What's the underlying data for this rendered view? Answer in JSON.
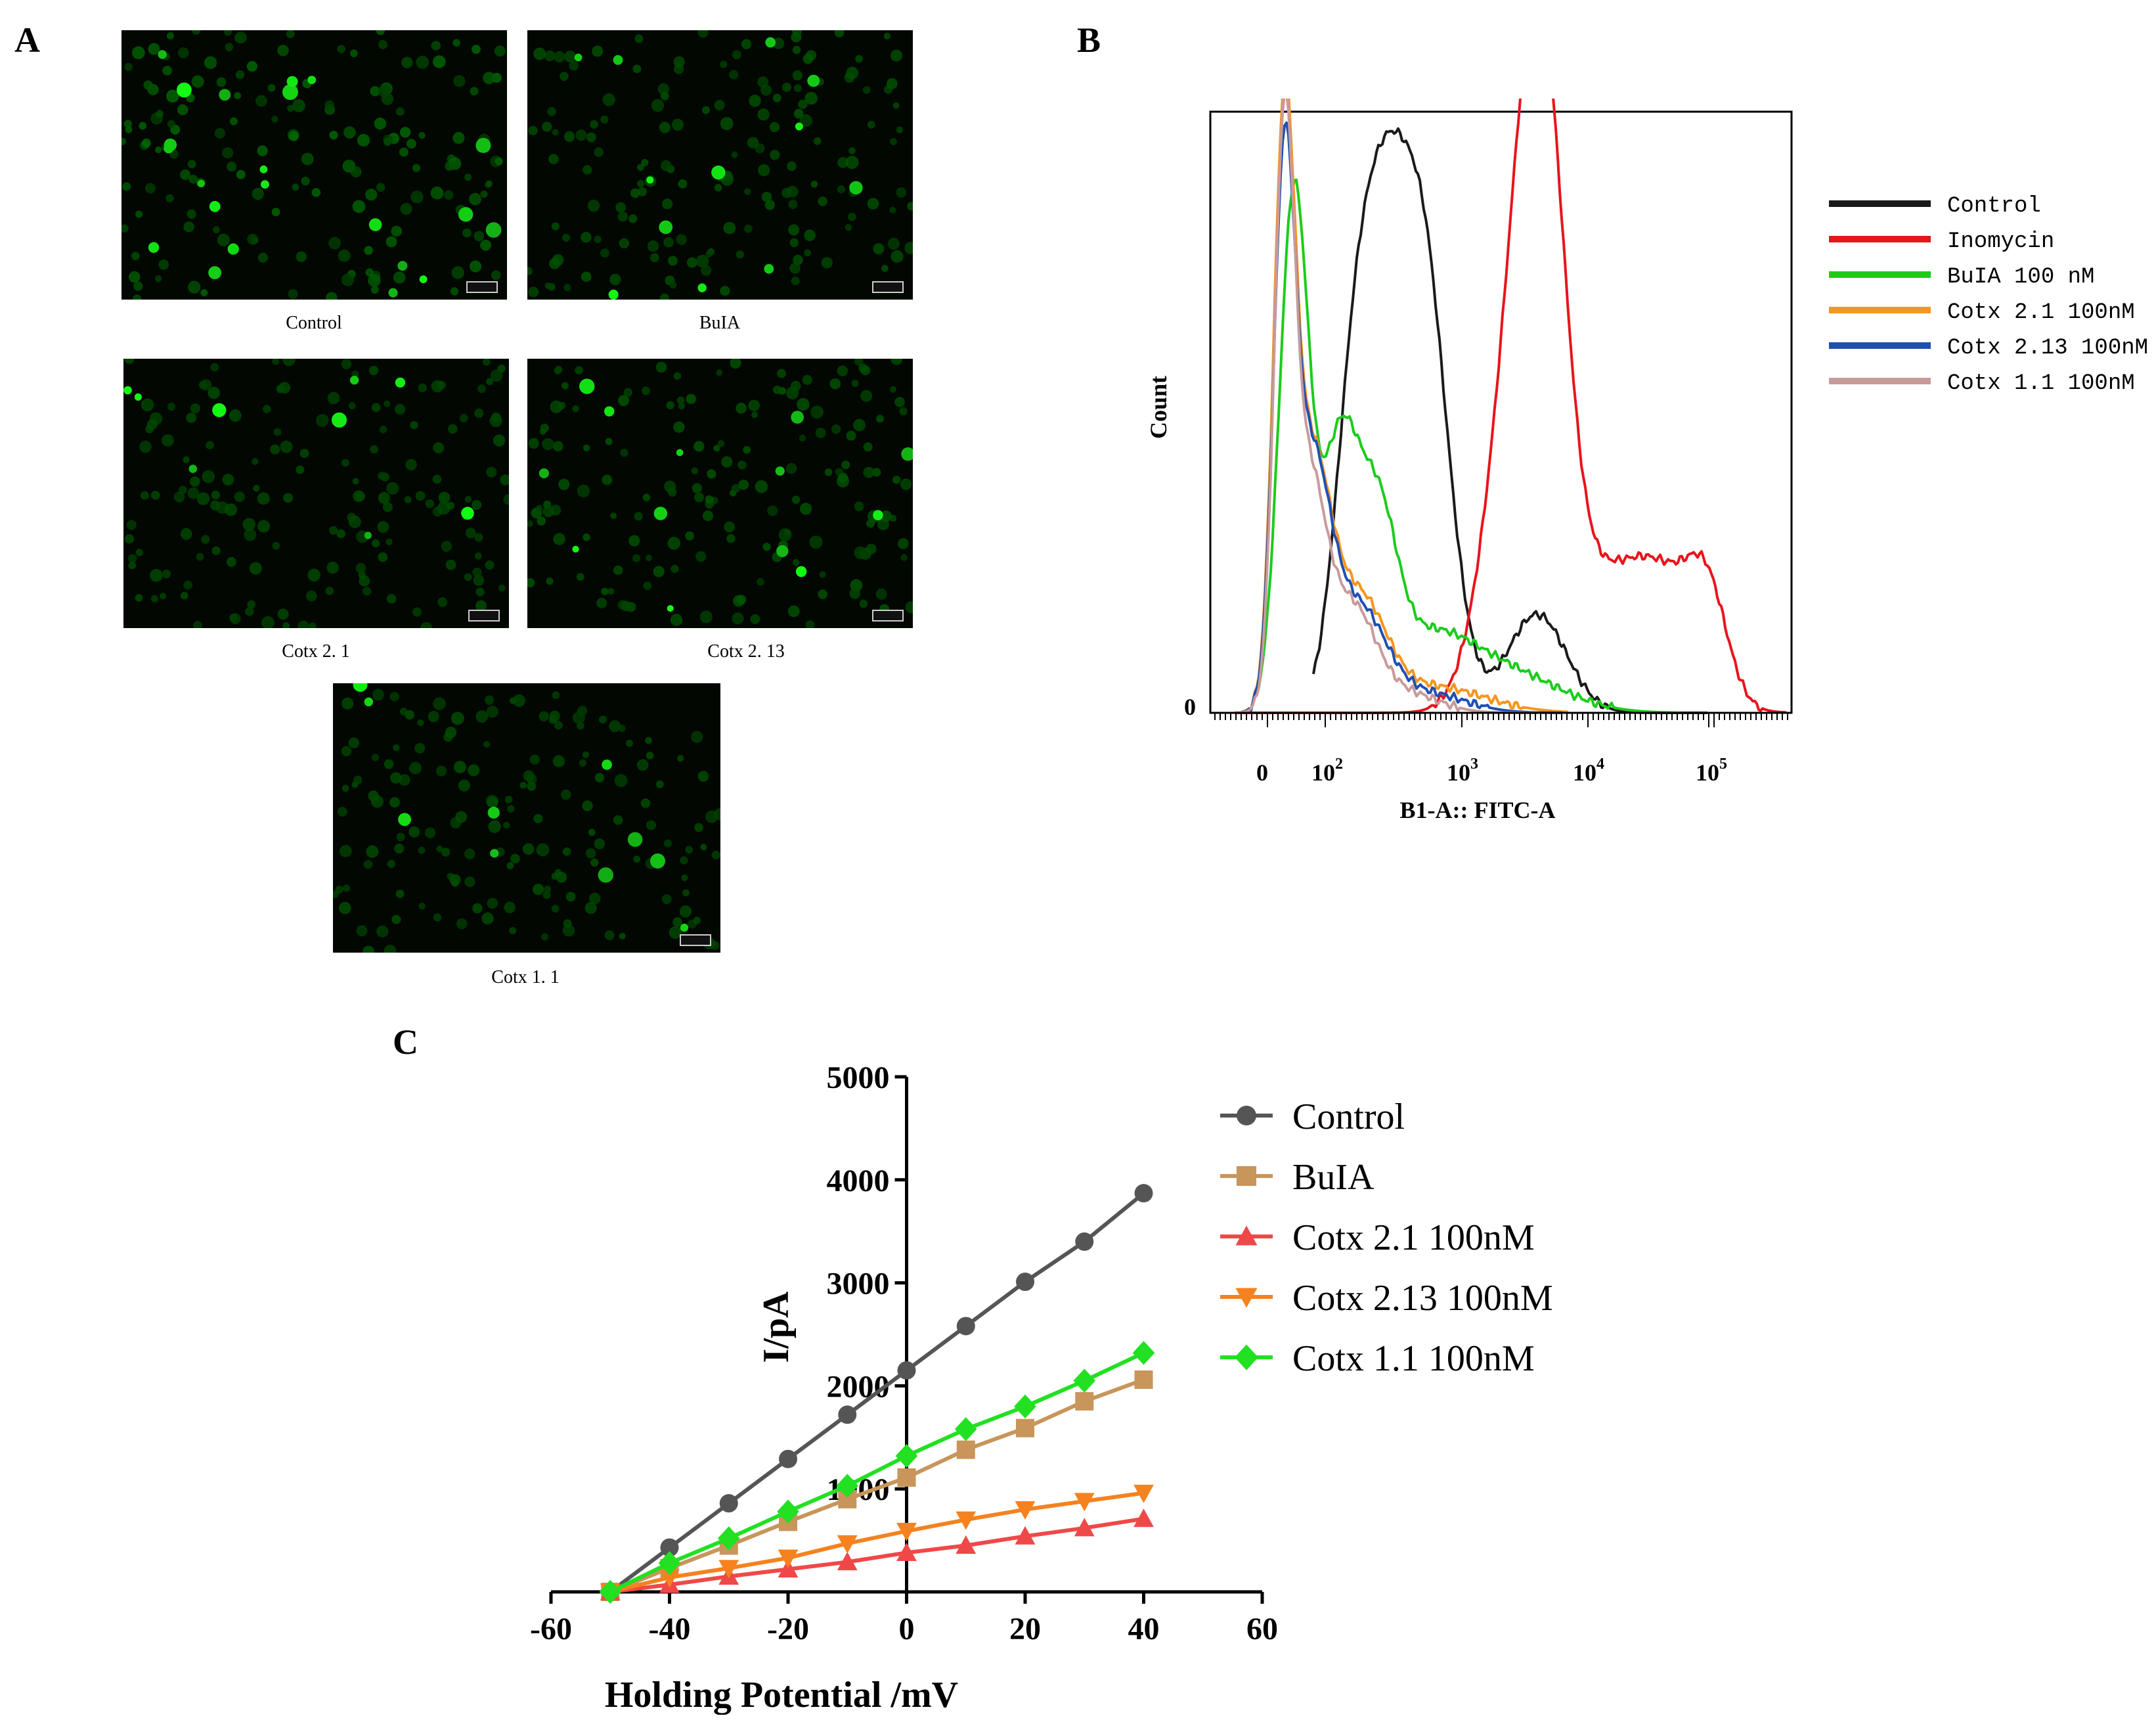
{
  "panels": {
    "a": "A",
    "b": "B",
    "c": "C"
  },
  "microscopy": [
    {
      "label": "Control",
      "brightness": 1.0
    },
    {
      "label": "BuIA",
      "brightness": 0.55
    },
    {
      "label": "Cotx 2. 1",
      "brightness": 0.4
    },
    {
      "label": "Cotx 2. 13",
      "brightness": 0.6
    },
    {
      "label": "Cotx 1. 1",
      "brightness": 0.45
    }
  ],
  "flow": {
    "ylabel": "Count",
    "xlabel": "B1-A:: FITC-A",
    "y_zero": "0",
    "x_ticks": [
      {
        "base": "0",
        "exp": ""
      },
      {
        "base": "10",
        "exp": "2"
      },
      {
        "base": "10",
        "exp": "3"
      },
      {
        "base": "10",
        "exp": "4"
      },
      {
        "base": "10",
        "exp": "5"
      }
    ],
    "legend": [
      {
        "name": "Control",
        "color": "#1a1a1a"
      },
      {
        "name": "Inomycin",
        "color": "#e8141b"
      },
      {
        "name": "BuIA 100 nM",
        "color": "#1ccc1c"
      },
      {
        "name": "Cotx 2.1 100nM",
        "color": "#f5961e"
      },
      {
        "name": "Cotx 2.13 100nM",
        "color": "#1f4fb3"
      },
      {
        "name": "Cotx 1.1 100nM",
        "color": "#c99a9a"
      }
    ]
  },
  "chart_data": {
    "type": "line",
    "title": "",
    "xlabel": "Holding Potential /mV",
    "ylabel": "I/pA",
    "xlim": [
      -60,
      60
    ],
    "ylim": [
      0,
      5000
    ],
    "x_ticks": [
      -60,
      -40,
      -20,
      0,
      20,
      40,
      60
    ],
    "y_ticks": [
      1000,
      2000,
      3000,
      4000,
      5000
    ],
    "x": [
      -50,
      -40,
      -30,
      -20,
      -10,
      0,
      10,
      20,
      30,
      40
    ],
    "series": [
      {
        "name": "Control",
        "color": "#555555",
        "marker": "circle",
        "values": [
          0,
          430,
          860,
          1290,
          1720,
          2150,
          2580,
          3010,
          3400,
          3870
        ]
      },
      {
        "name": "BuIA",
        "color": "#c8955a",
        "marker": "square",
        "values": [
          0,
          230,
          450,
          680,
          900,
          1110,
          1380,
          1590,
          1850,
          2060
        ]
      },
      {
        "name": "Cotx 2.1 100nM",
        "color": "#f04848",
        "marker": "triangle-up",
        "values": [
          0,
          70,
          150,
          220,
          290,
          380,
          450,
          540,
          620,
          710
        ]
      },
      {
        "name": "Cotx 2.13 100nM",
        "color": "#f5821e",
        "marker": "triangle-down",
        "values": [
          0,
          140,
          230,
          330,
          470,
          590,
          700,
          800,
          880,
          960
        ]
      },
      {
        "name": "Cotx 1.1 100nM",
        "color": "#22e022",
        "marker": "diamond",
        "values": [
          0,
          280,
          520,
          780,
          1030,
          1320,
          1580,
          1800,
          2050,
          2320
        ]
      }
    ]
  }
}
